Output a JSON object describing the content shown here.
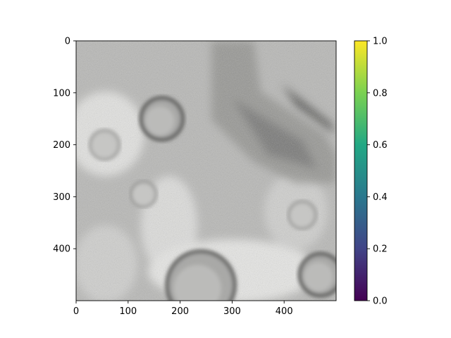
{
  "chart_data": {
    "type": "heatmap",
    "title": "",
    "xlabel": "",
    "ylabel": "",
    "image": {
      "description": "grayscale orbital terrain image with several craters",
      "width": 500,
      "height": 500,
      "xlim": [
        0,
        500
      ],
      "ylim": [
        500,
        0
      ],
      "x_ticks": [
        0,
        100,
        200,
        300,
        400
      ],
      "y_ticks": [
        0,
        100,
        200,
        300,
        400
      ],
      "craters": [
        {
          "cx": 165,
          "cy": 150,
          "r": 40,
          "tone": "dark"
        },
        {
          "cx": 55,
          "cy": 200,
          "r": 28,
          "tone": "light"
        },
        {
          "cx": 130,
          "cy": 295,
          "r": 24,
          "tone": "light"
        },
        {
          "cx": 240,
          "cy": 470,
          "r": 65,
          "tone": "dark"
        },
        {
          "cx": 470,
          "cy": 450,
          "r": 40,
          "tone": "dark"
        },
        {
          "cx": 435,
          "cy": 335,
          "r": 26,
          "tone": "light"
        }
      ]
    },
    "colorbar": {
      "colormap": "viridis",
      "range": [
        0.0,
        1.0
      ],
      "ticks": [
        "0.0",
        "0.2",
        "0.4",
        "0.6",
        "0.8",
        "1.0"
      ],
      "colors": [
        "#440154",
        "#414487",
        "#2a788e",
        "#22a884",
        "#7ad151",
        "#fde725"
      ]
    }
  }
}
